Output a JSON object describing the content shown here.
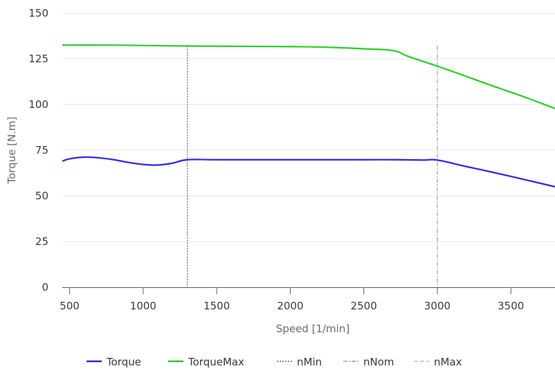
{
  "chart_data": {
    "type": "line",
    "title": "",
    "xlabel": "Speed [1/min]",
    "ylabel": "Torque [N.m]",
    "xlim": [
      450,
      3800
    ],
    "ylim": [
      0,
      150
    ],
    "x_ticks": [
      500,
      1000,
      1500,
      2000,
      2500,
      3000,
      3500
    ],
    "y_ticks": [
      0,
      25,
      50,
      75,
      100,
      125,
      150
    ],
    "grid": "horizontal",
    "legend_position": "bottom",
    "series": [
      {
        "name": "Torque",
        "color": "#2222dd",
        "style": "solid",
        "x": [
          450,
          500,
          600,
          700,
          800,
          900,
          1000,
          1100,
          1200,
          1300,
          1500,
          2000,
          2500,
          2700,
          2900,
          3000,
          3200,
          3400,
          3600,
          3800
        ],
        "y": [
          69,
          70.3,
          71.2,
          70.8,
          69.8,
          68.3,
          67.2,
          66.9,
          67.9,
          69.8,
          69.8,
          69.8,
          69.8,
          69.8,
          69.6,
          69.6,
          66,
          62.5,
          58.8,
          55
        ]
      },
      {
        "name": "TorqueMax",
        "color": "#22cc22",
        "style": "solid",
        "x": [
          450,
          800,
          1300,
          1800,
          2100,
          2300,
          2500,
          2700,
          2800,
          3000,
          3200,
          3400,
          3600,
          3800
        ],
        "y": [
          132.5,
          132.5,
          132,
          131.8,
          131.6,
          131.2,
          130.5,
          129.5,
          126.4,
          121,
          115.3,
          109.5,
          103.9,
          97.8
        ]
      }
    ],
    "reference_lines": [
      {
        "name": "nMin",
        "x": 1300,
        "color": "#555555",
        "dash": "2 2"
      },
      {
        "name": "nNom",
        "x": 3000,
        "color": "#999999",
        "dash": "6 2 2 2"
      },
      {
        "name": "nMax",
        "x": 3800,
        "color": "#bbbbbb",
        "dash": "6 3"
      }
    ]
  }
}
